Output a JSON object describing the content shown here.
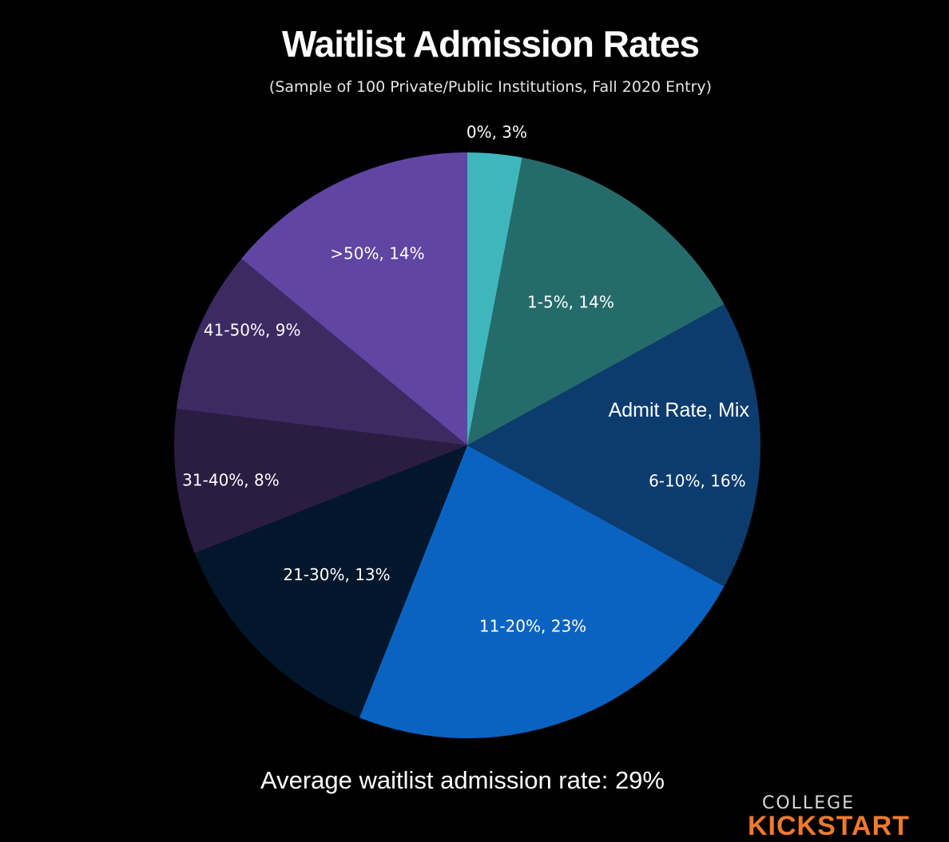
{
  "chart_data": {
    "type": "pie",
    "title": "Waitlist Admission Rates",
    "subtitle": "(Sample of 100 Private/Public Institutions, Fall 2020 Entry)",
    "legend_title": "Admit Rate, Mix",
    "slices": [
      {
        "label": "0%",
        "value": 3,
        "text": "0%, 3%",
        "color": "#3eb6bc"
      },
      {
        "label": "1-5%",
        "value": 14,
        "text": "1-5%, 14%",
        "color": "#266b6b"
      },
      {
        "label": "6-10%",
        "value": 16,
        "text": "6-10%, 16%",
        "color": "#0c3c6e"
      },
      {
        "label": "11-20%",
        "value": 23,
        "text": "11-20%, 23%",
        "color": "#0b63c1"
      },
      {
        "label": "21-30%",
        "value": 13,
        "text": "21-30%, 13%",
        "color": "#02172b"
      },
      {
        "label": "31-40%",
        "value": 8,
        "text": "31-40%, 8%",
        "color": "#2b1d41"
      },
      {
        "label": "41-50%",
        "value": 9,
        "text": "41-50%, 9%",
        "color": "#3d2a63"
      },
      {
        "label": ">50%",
        "value": 14,
        "text": ">50%, 14%",
        "color": "#6045a3"
      }
    ],
    "note": "Average waitlist admission rate: 29%"
  },
  "brand": {
    "line1": "COLLEGE",
    "line2": "KICKSTART"
  }
}
